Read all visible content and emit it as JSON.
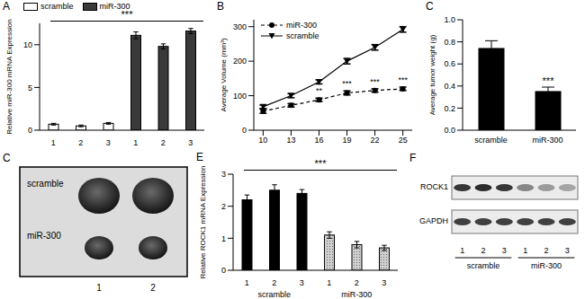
{
  "chart_data": [
    {
      "type": "bar",
      "title": "A",
      "y_label": "Relative miR-300 mRNA Expression",
      "categories": [
        "1",
        "2",
        "3",
        "1",
        "2",
        "3"
      ],
      "series": [
        {
          "name": "scramble",
          "color": "#ffffff",
          "values": [
            0.7,
            0.5,
            0.8,
            null,
            null,
            null
          ],
          "errors": [
            0.1,
            0.1,
            0.1,
            null,
            null,
            null
          ]
        },
        {
          "name": "miR-300",
          "color": "#3a3a3a",
          "values": [
            null,
            null,
            null,
            11.1,
            9.8,
            11.6
          ],
          "errors": [
            null,
            null,
            null,
            0.4,
            0.3,
            0.3
          ]
        }
      ],
      "ylim": [
        0,
        12.5
      ],
      "yticks": [
        0,
        5,
        10
      ],
      "legend": "top-left",
      "annotation": "***"
    },
    {
      "type": "line",
      "title": "B",
      "y_label": "Average Volume (mm³)",
      "x": [
        10,
        13,
        16,
        19,
        22,
        25
      ],
      "series": [
        {
          "name": "miR-300",
          "color": "#000000",
          "marker": "circle",
          "line_style": "dashed",
          "values": [
            55,
            72,
            88,
            108,
            115,
            120
          ],
          "errors": [
            6,
            5,
            5,
            6,
            5,
            5
          ],
          "significance": [
            null,
            null,
            "**",
            "***",
            "***",
            "***"
          ]
        },
        {
          "name": "scramble",
          "color": "#000000",
          "marker": "triangle-down",
          "line_style": "solid",
          "values": [
            68,
            100,
            140,
            200,
            240,
            292
          ],
          "errors": [
            5,
            6,
            6,
            8,
            8,
            8
          ]
        }
      ],
      "xlim": [
        9,
        26
      ],
      "xticks": [
        10,
        13,
        16,
        19,
        22,
        25
      ],
      "ylim": [
        0,
        320
      ],
      "yticks": [
        0,
        100,
        200,
        300
      ],
      "legend": "top-left"
    },
    {
      "type": "bar",
      "title": "C",
      "y_label": "Average tumor weight (g)",
      "categories": [
        "scramble",
        "miR-300"
      ],
      "values": [
        0.74,
        0.35
      ],
      "errors": [
        0.07,
        0.04
      ],
      "significance": [
        null,
        "***"
      ],
      "color": "#000000",
      "ylim": [
        0,
        1.0
      ],
      "yticks": [
        {
          "value": 0,
          "label": "0.0"
        },
        0.2,
        0.4,
        0.6,
        0.8,
        {
          "value": 1,
          "label": "1.0"
        }
      ]
    },
    {
      "type": "bar",
      "title": "E",
      "y_label": "Relative ROCK1 mRNA Expression",
      "categories": [
        "1",
        "2",
        "3",
        "1",
        "2",
        "3"
      ],
      "series": [
        {
          "name": "scramble",
          "color": "#000000",
          "values": [
            2.2,
            2.5,
            2.4,
            null,
            null,
            null
          ],
          "errors": [
            0.15,
            0.17,
            0.12,
            null,
            null,
            null
          ]
        },
        {
          "name": "miR-300",
          "color": "#d0d0d0",
          "values": [
            null,
            null,
            null,
            1.1,
            0.8,
            0.7
          ],
          "errors": [
            null,
            null,
            null,
            0.1,
            0.1,
            0.08
          ]
        }
      ],
      "ylim": [
        0,
        3
      ],
      "yticks": [
        0,
        1,
        2,
        3
      ],
      "annotation": "***"
    }
  ],
  "photo": {
    "title": "C",
    "rows": [
      "scramble",
      "miR-300"
    ],
    "columns": [
      "1",
      "2"
    ]
  },
  "blot": {
    "title": "F",
    "proteins": [
      "ROCK1",
      "GAPDH"
    ],
    "lanes": [
      "1",
      "2",
      "3",
      "1",
      "2",
      "3"
    ],
    "groups": [
      "scramble",
      "miR-300"
    ]
  }
}
